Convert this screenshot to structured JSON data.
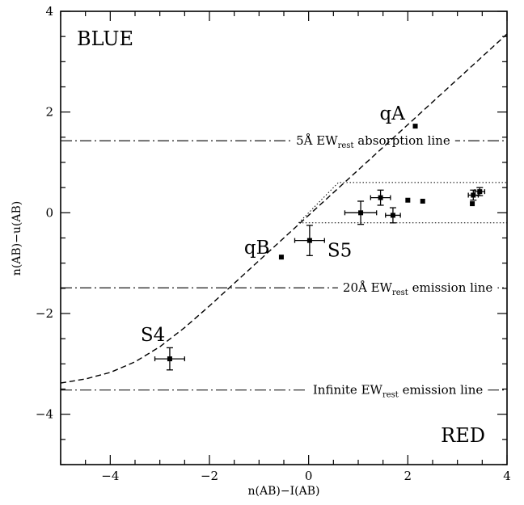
{
  "chart_data": {
    "type": "scatter",
    "xlabel": "n(AB)−I(AB)",
    "ylabel": "n(AB)−u(AB)",
    "xlim": [
      -5,
      4
    ],
    "ylim": [
      -5,
      4
    ],
    "x_ticks": [
      -4,
      -2,
      0,
      2,
      4
    ],
    "y_ticks": [
      -4,
      -2,
      0,
      2,
      4
    ],
    "x_tick_labels": [
      "−4",
      "−2",
      "0",
      "2",
      "4"
    ],
    "y_tick_labels": [
      "−4",
      "−2",
      "0",
      "2",
      "4"
    ],
    "grid": false,
    "corner_labels": {
      "top_left": "BLUE",
      "bottom_right": "RED"
    },
    "points_with_errors": [
      {
        "label": "S4",
        "x": -2.8,
        "y": -2.9,
        "xerr": 0.3,
        "yerr": 0.22
      },
      {
        "label": "S5",
        "x": 0.02,
        "y": -0.55,
        "xerr": 0.3,
        "yerr": 0.3
      },
      {
        "label": "",
        "x": 1.05,
        "y": 0.0,
        "xerr": 0.32,
        "yerr": 0.23
      },
      {
        "label": "",
        "x": 1.45,
        "y": 0.3,
        "xerr": 0.2,
        "yerr": 0.15
      },
      {
        "label": "",
        "x": 1.7,
        "y": -0.05,
        "xerr": 0.15,
        "yerr": 0.15
      },
      {
        "label": "",
        "x": 3.32,
        "y": 0.35,
        "xerr": 0.1,
        "yerr": 0.1
      },
      {
        "label": "",
        "x": 3.45,
        "y": 0.42,
        "xerr": 0.1,
        "yerr": 0.08
      }
    ],
    "points": [
      {
        "label": "qA",
        "x": 2.15,
        "y": 1.72
      },
      {
        "label": "qB",
        "x": -0.55,
        "y": -0.88
      },
      {
        "label": "",
        "x": 2.0,
        "y": 0.25
      },
      {
        "label": "",
        "x": 2.3,
        "y": 0.23
      },
      {
        "label": "",
        "x": 3.3,
        "y": 0.18
      }
    ],
    "model_curve": {
      "style": "dashed",
      "x": [
        -5.0,
        -4.5,
        -4.0,
        -3.5,
        -3.0,
        -2.5,
        -2.0,
        -1.5,
        -1.0,
        -0.5,
        0.0,
        1.0,
        2.0,
        3.0,
        4.0
      ],
      "y": [
        -3.38,
        -3.3,
        -3.17,
        -2.96,
        -2.66,
        -2.28,
        -1.85,
        -1.4,
        -0.95,
        -0.5,
        -0.05,
        0.85,
        1.75,
        2.65,
        3.55
      ]
    },
    "horizontal_lines": [
      {
        "y": 1.43,
        "style": "dash-dot",
        "label_pre": "5Å EW",
        "label_sub": "rest",
        "label_post": " absorption line",
        "label_x": 1.3
      },
      {
        "y": -1.49,
        "style": "dash-dot",
        "label_pre": "20Å EW",
        "label_sub": "rest",
        "label_post": " emission line",
        "label_x": 2.2
      },
      {
        "y": -3.52,
        "style": "dash-dot",
        "label_pre": "Infinite EW",
        "label_sub": "rest",
        "label_post": " emission line",
        "label_x": 1.8
      }
    ],
    "region": {
      "style": "dotted",
      "x": [
        -0.2,
        0.6,
        4.0,
        4.0,
        -0.2
      ],
      "y": [
        -0.2,
        0.6,
        0.6,
        -0.2,
        -0.2
      ]
    }
  }
}
